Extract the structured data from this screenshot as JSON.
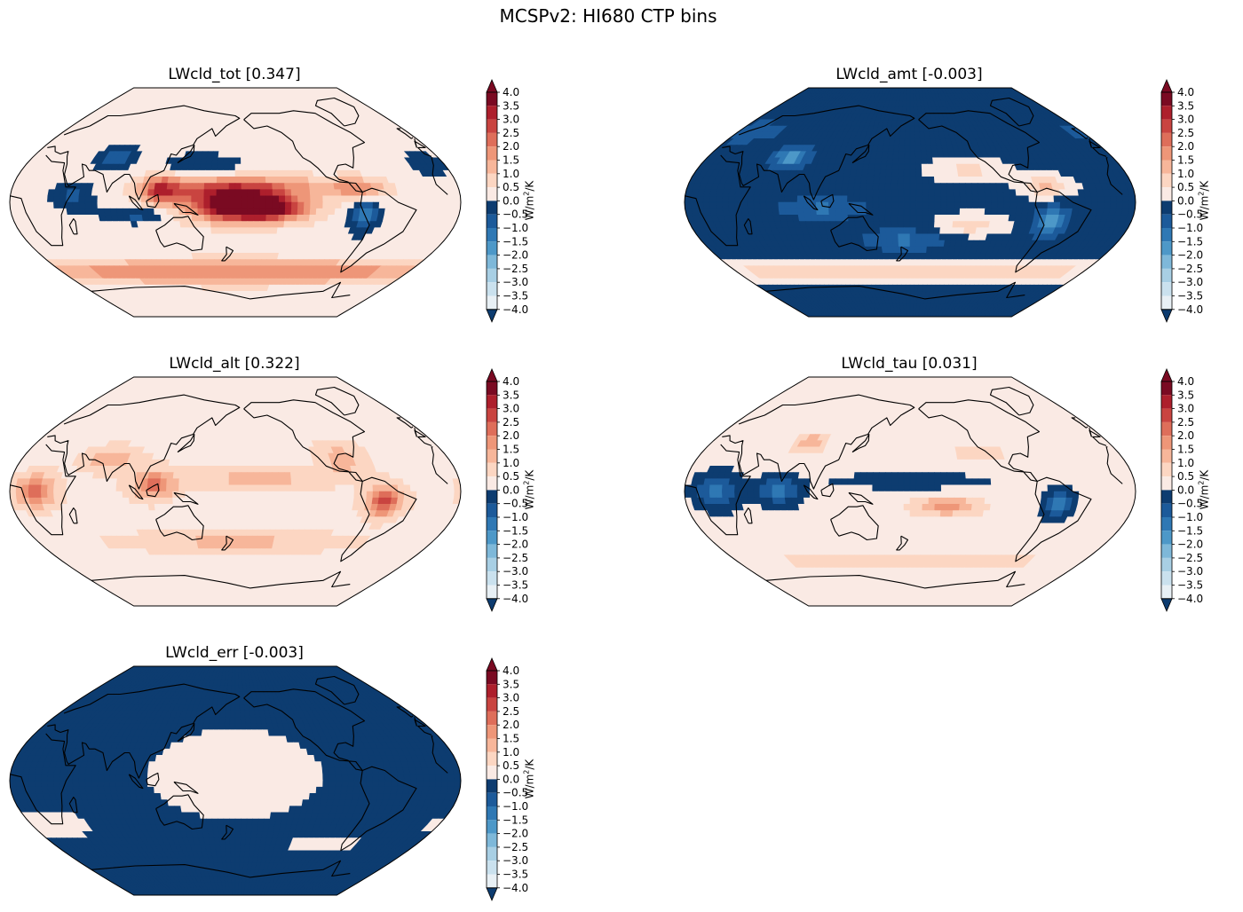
{
  "figure": {
    "title": "MCSPv2: HI680 CTP bins",
    "colorbar_unit_prefix": "W/m",
    "colorbar_unit_exp": "2",
    "colorbar_unit_suffix": "/K"
  },
  "colors": {
    "neg": [
      "#0d3c70",
      "#1c5a9a",
      "#2f78b4",
      "#4d98c8",
      "#7eb8d9",
      "#a8cfe4",
      "#cae1ee",
      "#e8f0f5"
    ],
    "pos": [
      "#faeae4",
      "#fcd6c2",
      "#f7b69a",
      "#ee9678",
      "#de6e5a",
      "#c94440",
      "#ad1f2c",
      "#7a0a22"
    ],
    "coast": "#000000"
  },
  "chart_data": [
    {
      "type": "heatmap",
      "title": "LWcld_tot [0.347]",
      "variable": "LWcld_tot",
      "global_mean": 0.347,
      "colorbar_ticks": [
        "4.0",
        "3.5",
        "3.0",
        "2.5",
        "2.0",
        "1.5",
        "1.0",
        "0.5",
        "0.0",
        "−0.5",
        "−1.0",
        "−1.5",
        "−2.0",
        "−2.5",
        "−3.0",
        "−3.5",
        "−4.0"
      ],
      "range": [
        -4.0,
        4.0
      ],
      "pattern": {
        "background": 0.3,
        "features": [
          {
            "lon": 200,
            "lat": -5,
            "value": 3.5,
            "sx": 25,
            "sy": 7
          },
          {
            "lon": 175,
            "lat": -2,
            "value": 2.3,
            "sx": 30,
            "sy": 9
          },
          {
            "lon": 120,
            "lat": 10,
            "value": 2.1,
            "sx": 10,
            "sy": 8
          },
          {
            "lon": 160,
            "lat": 10,
            "value": 1.4,
            "sx": 35,
            "sy": 6
          },
          {
            "lon": 210,
            "lat": 12,
            "value": 1.2,
            "sx": 40,
            "sy": 6
          },
          {
            "lon": 280,
            "lat": 10,
            "value": 1.5,
            "sx": 15,
            "sy": 6
          },
          {
            "lon": 180,
            "lat": -55,
            "value": 1.8,
            "sx": 180,
            "sy": 6
          },
          {
            "lon": 75,
            "lat": 35,
            "value": -1.3,
            "sx": 12,
            "sy": 6
          },
          {
            "lon": 50,
            "lat": 5,
            "value": -1.0,
            "sx": 12,
            "sy": 8
          },
          {
            "lon": 100,
            "lat": -10,
            "value": -1.0,
            "sx": 20,
            "sy": 5
          },
          {
            "lon": 285,
            "lat": -10,
            "value": -1.5,
            "sx": 8,
            "sy": 10
          },
          {
            "lon": 150,
            "lat": 30,
            "value": -0.8,
            "sx": 25,
            "sy": 6
          },
          {
            "lon": 345,
            "lat": 30,
            "value": -0.8,
            "sx": 12,
            "sy": 8
          }
        ]
      }
    },
    {
      "type": "heatmap",
      "title": "LWcld_amt [-0.003]",
      "variable": "LWcld_amt",
      "global_mean": -0.003,
      "colorbar_ticks": [
        "4.0",
        "3.5",
        "3.0",
        "2.5",
        "2.0",
        "1.5",
        "1.0",
        "0.5",
        "0.0",
        "−0.5",
        "−1.0",
        "−1.5",
        "−2.0",
        "−2.5",
        "−3.0",
        "−3.5",
        "−4.0"
      ],
      "range": [
        -4.0,
        4.0
      ],
      "pattern": {
        "background": -0.2,
        "features": [
          {
            "lon": 180,
            "lat": -55,
            "value": 1.2,
            "sx": 180,
            "sy": 5
          },
          {
            "lon": 230,
            "lat": 25,
            "value": 0.8,
            "sx": 25,
            "sy": 6
          },
          {
            "lon": 290,
            "lat": 12,
            "value": 1.3,
            "sx": 15,
            "sy": 6
          },
          {
            "lon": 230,
            "lat": -18,
            "value": 1.0,
            "sx": 20,
            "sy": 6
          },
          {
            "lon": 75,
            "lat": 35,
            "value": -1.5,
            "sx": 12,
            "sy": 6
          },
          {
            "lon": 295,
            "lat": -15,
            "value": -1.8,
            "sx": 8,
            "sy": 8
          },
          {
            "lon": 110,
            "lat": -5,
            "value": -0.9,
            "sx": 25,
            "sy": 6
          },
          {
            "lon": 175,
            "lat": -30,
            "value": -0.9,
            "sx": 25,
            "sy": 6
          },
          {
            "lon": 15,
            "lat": 55,
            "value": -0.7,
            "sx": 25,
            "sy": 6
          }
        ]
      }
    },
    {
      "type": "heatmap",
      "title": "LWcld_alt [0.322]",
      "variable": "LWcld_alt",
      "global_mean": 0.322,
      "colorbar_ticks": [
        "4.0",
        "3.5",
        "3.0",
        "2.5",
        "2.0",
        "1.5",
        "1.0",
        "0.5",
        "0.0",
        "−0.5",
        "−1.0",
        "−1.5",
        "−2.0",
        "−2.5",
        "−3.0",
        "−3.5",
        "−4.0"
      ],
      "range": [
        -4.0,
        4.0
      ],
      "pattern": {
        "background": 0.4,
        "features": [
          {
            "lon": 20,
            "lat": 0,
            "value": 2.2,
            "sx": 10,
            "sy": 8
          },
          {
            "lon": 300,
            "lat": -8,
            "value": 2.3,
            "sx": 10,
            "sy": 8
          },
          {
            "lon": 115,
            "lat": 5,
            "value": 1.7,
            "sx": 12,
            "sy": 8
          },
          {
            "lon": 75,
            "lat": 25,
            "value": 1.0,
            "sx": 15,
            "sy": 6
          },
          {
            "lon": 270,
            "lat": 25,
            "value": 1.0,
            "sx": 12,
            "sy": 8
          },
          {
            "lon": 200,
            "lat": 10,
            "value": 0.8,
            "sx": 40,
            "sy": 5
          },
          {
            "lon": 180,
            "lat": -40,
            "value": 0.8,
            "sx": 60,
            "sy": 5
          },
          {
            "lon": 175,
            "lat": -12,
            "value": -0.4,
            "sx": 30,
            "sy": 5
          }
        ]
      }
    },
    {
      "type": "heatmap",
      "title": "LWcld_tau [0.031]",
      "variable": "LWcld_tau",
      "global_mean": 0.031,
      "colorbar_ticks": [
        "4.0",
        "3.5",
        "3.0",
        "2.5",
        "2.0",
        "1.5",
        "1.0",
        "0.5",
        "0.0",
        "−0.5",
        "−1.0",
        "−1.5",
        "−2.0",
        "−2.5",
        "−3.0",
        "−3.5",
        "−4.0"
      ],
      "range": [
        -4.0,
        4.0
      ],
      "pattern": {
        "background": 0.2,
        "features": [
          {
            "lon": 25,
            "lat": 0,
            "value": -1.5,
            "sx": 12,
            "sy": 10
          },
          {
            "lon": 75,
            "lat": 0,
            "value": -1.3,
            "sx": 12,
            "sy": 8
          },
          {
            "lon": 300,
            "lat": -10,
            "value": -1.4,
            "sx": 8,
            "sy": 8
          },
          {
            "lon": 180,
            "lat": 8,
            "value": -0.7,
            "sx": 40,
            "sy": 4
          },
          {
            "lon": 210,
            "lat": -12,
            "value": 1.5,
            "sx": 20,
            "sy": 5
          },
          {
            "lon": 90,
            "lat": 38,
            "value": 1.3,
            "sx": 10,
            "sy": 5
          },
          {
            "lon": 180,
            "lat": -55,
            "value": 0.8,
            "sx": 100,
            "sy": 4
          },
          {
            "lon": 240,
            "lat": 30,
            "value": 0.6,
            "sx": 20,
            "sy": 6
          }
        ]
      }
    },
    {
      "type": "heatmap",
      "title": "LWcld_err [-0.003]",
      "variable": "LWcld_err",
      "global_mean": -0.003,
      "colorbar_ticks": [
        "4.0",
        "3.5",
        "3.0",
        "2.5",
        "2.0",
        "1.5",
        "1.0",
        "0.5",
        "0.0",
        "−0.5",
        "−1.0",
        "−1.5",
        "−2.0",
        "−2.5",
        "−3.0",
        "−3.5",
        "−4.0"
      ],
      "range": [
        -4.0,
        4.0
      ],
      "pattern": {
        "background": -0.3,
        "features": [
          {
            "lon": 180,
            "lat": 5,
            "value": 0.6,
            "sx": 60,
            "sy": 30
          },
          {
            "lon": 20,
            "lat": -35,
            "value": 0.5,
            "sx": 30,
            "sy": 10
          },
          {
            "lon": 270,
            "lat": -50,
            "value": 0.5,
            "sx": 30,
            "sy": 6
          }
        ]
      }
    }
  ]
}
